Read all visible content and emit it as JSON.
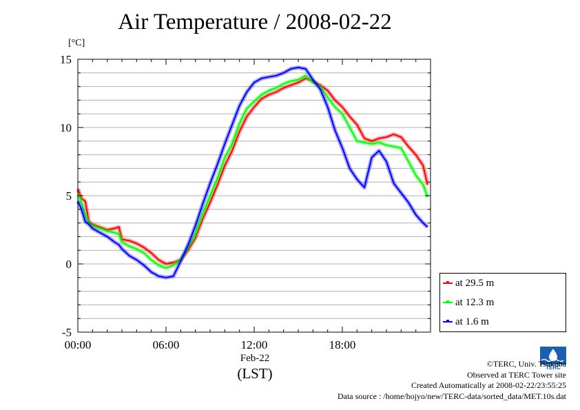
{
  "chart_data": {
    "type": "line",
    "title": "Air Temperature / 2008-02-22",
    "ylabel": "[°C]",
    "xlabel": "(LST)",
    "date_label": "Feb-22",
    "ylim": [
      -5,
      15
    ],
    "xlim": [
      0,
      24
    ],
    "yticks": [
      15,
      10,
      5,
      0,
      -5
    ],
    "xticks": [
      {
        "value": 0,
        "label": "00:00"
      },
      {
        "value": 6,
        "label": "06:00"
      },
      {
        "value": 12,
        "label": "12:00"
      },
      {
        "value": 18,
        "label": "18:00"
      }
    ],
    "grid": true,
    "legend_position": "bottom-right outside plot",
    "series": [
      {
        "name": "at 29.5 m",
        "color": "#ff0000",
        "x": [
          0,
          0.25,
          0.5,
          0.75,
          1,
          1.5,
          2,
          2.5,
          2.8,
          3,
          3.5,
          4,
          4.5,
          5,
          5.5,
          6,
          6.5,
          7,
          7.5,
          8,
          8.5,
          9,
          9.5,
          10,
          10.5,
          11,
          11.5,
          12,
          12.5,
          13,
          13.5,
          14,
          14.5,
          15,
          15.5,
          16,
          16.5,
          17,
          17.5,
          18,
          18.5,
          19,
          19.5,
          20,
          20.5,
          21,
          21.5,
          22,
          22.5,
          23,
          23.5,
          23.8
        ],
        "y": [
          5.5,
          4.8,
          4.6,
          3.1,
          2.9,
          2.7,
          2.5,
          2.6,
          2.7,
          1.8,
          1.7,
          1.5,
          1.2,
          0.8,
          0.3,
          0.0,
          0.1,
          0.3,
          1.0,
          1.9,
          3.3,
          4.5,
          5.8,
          7.2,
          8.3,
          9.7,
          10.8,
          11.5,
          12.1,
          12.4,
          12.6,
          12.9,
          13.1,
          13.3,
          13.6,
          13.4,
          13.1,
          12.7,
          12.0,
          11.5,
          10.8,
          10.2,
          9.2,
          9.0,
          9.2,
          9.3,
          9.5,
          9.3,
          8.6,
          8.0,
          7.2,
          5.8
        ]
      },
      {
        "name": "at 12.3 m",
        "color": "#00ff00",
        "x": [
          0,
          0.25,
          0.5,
          0.75,
          1,
          1.5,
          2,
          2.5,
          2.8,
          3,
          3.5,
          4,
          4.5,
          5,
          5.5,
          6,
          6.5,
          7,
          7.5,
          8,
          8.5,
          9,
          9.5,
          10,
          10.5,
          11,
          11.5,
          12,
          12.5,
          13,
          13.5,
          14,
          14.5,
          15,
          15.5,
          16,
          16.5,
          17,
          17.5,
          18,
          18.5,
          19,
          19.5,
          20,
          20.5,
          21,
          21.5,
          22,
          22.5,
          23,
          23.5,
          23.8
        ],
        "y": [
          5.1,
          4.5,
          3.6,
          3.0,
          2.8,
          2.6,
          2.4,
          2.3,
          2.2,
          1.6,
          1.3,
          1.1,
          0.8,
          0.3,
          -0.1,
          -0.3,
          -0.1,
          0.3,
          1.2,
          2.2,
          3.7,
          5.0,
          6.3,
          7.8,
          8.8,
          10.3,
          11.4,
          11.9,
          12.4,
          12.7,
          12.9,
          13.2,
          13.4,
          13.5,
          13.8,
          13.3,
          13.0,
          12.2,
          11.5,
          11.0,
          10.0,
          9.0,
          8.9,
          8.8,
          8.9,
          8.7,
          8.6,
          8.5,
          7.5,
          6.5,
          5.8,
          4.9
        ]
      },
      {
        "name": "at 1.6 m",
        "color": "#0000ff",
        "x": [
          0,
          0.25,
          0.5,
          0.75,
          1,
          1.5,
          2,
          2.5,
          2.8,
          3,
          3.5,
          4,
          4.5,
          5,
          5.5,
          6,
          6.5,
          7,
          7.5,
          8,
          8.5,
          9,
          9.5,
          10,
          10.5,
          11,
          11.5,
          12,
          12.5,
          13,
          13.5,
          14,
          14.5,
          15,
          15.5,
          16,
          16.5,
          17,
          17.5,
          18,
          18.5,
          19,
          19.5,
          20,
          20.5,
          21,
          21.5,
          22,
          22.5,
          23,
          23.5,
          23.8
        ],
        "y": [
          4.6,
          4.0,
          3.1,
          2.9,
          2.6,
          2.3,
          2.0,
          1.6,
          1.4,
          1.1,
          0.6,
          0.3,
          -0.1,
          -0.6,
          -0.9,
          -1.0,
          -0.9,
          0.2,
          1.4,
          2.8,
          4.4,
          5.9,
          7.3,
          8.8,
          10.2,
          11.6,
          12.6,
          13.3,
          13.6,
          13.7,
          13.8,
          14.0,
          14.3,
          14.4,
          14.3,
          13.5,
          12.8,
          11.5,
          9.8,
          8.5,
          7.0,
          6.2,
          5.6,
          7.8,
          8.3,
          7.5,
          5.9,
          5.2,
          4.5,
          3.6,
          3.0,
          2.7
        ]
      }
    ]
  },
  "credits": {
    "copyright": "©TERC, Univ. Tsukuba",
    "observed": "Observed at TERC Tower site",
    "created": "Created Automatically at 2008-02-22/23:55:25",
    "source": "Data source : /home/hojyo/new/TERC-data/sorted_data/MET.10s.dat"
  },
  "logo": {
    "text": "TERC",
    "color": "#1a5fb4"
  }
}
